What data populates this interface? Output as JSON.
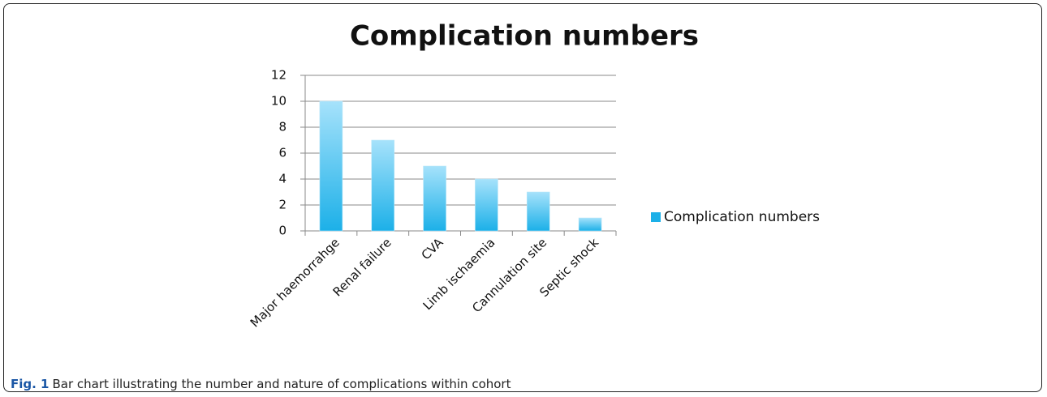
{
  "chart_data": {
    "type": "bar",
    "title": "Complication numbers",
    "categories": [
      "Major haemorrahge",
      "Renal failure",
      "CVA",
      "Limb ischaemia",
      "Cannulation site",
      "Septic shock"
    ],
    "series": [
      {
        "name": "Complication numbers",
        "color": "#1cb0e8",
        "values": [
          10,
          7,
          5,
          4,
          3,
          1
        ]
      }
    ],
    "ylim": [
      0,
      12
    ],
    "yticks": [
      0,
      2,
      4,
      6,
      8,
      10,
      12
    ],
    "grid": true,
    "legend": "right"
  },
  "caption": {
    "label": "Fig. 1",
    "text": "Bar chart illustrating the number and nature of complications within cohort"
  }
}
